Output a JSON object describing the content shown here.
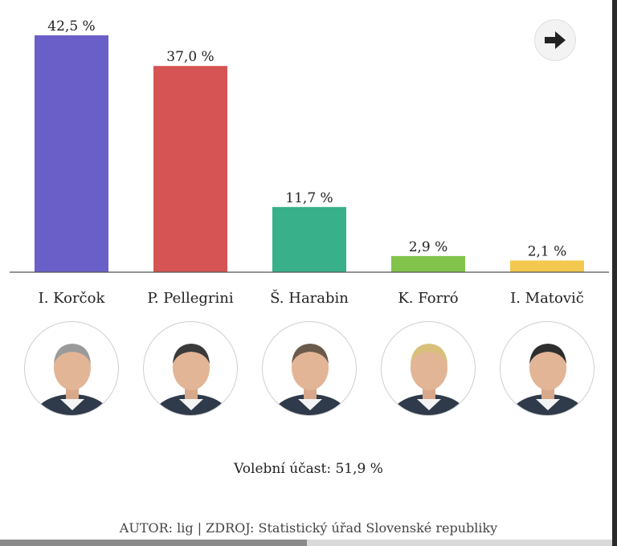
{
  "chart_data": {
    "type": "bar",
    "categories": [
      "I. Korčok",
      "P. Pellegrini",
      "Š. Harabin",
      "K. Forró",
      "I. Matovič"
    ],
    "values": [
      42.5,
      37.0,
      11.7,
      2.9,
      2.1
    ],
    "value_labels": [
      "42,5 %",
      "37,0 %",
      "11,7 %",
      "2,9 %",
      "2,1 %"
    ],
    "colors": [
      "#6a5fc9",
      "#d65454",
      "#38b08a",
      "#82c44b",
      "#f2c84e"
    ],
    "ylim": [
      0,
      42.5
    ],
    "grid": false,
    "legend": "none"
  },
  "footer": {
    "turnout": "Volební účast: 51,9 %",
    "source": "AUTOR: lig | ZDROJ: Statistický úřad Slovenské republiky"
  },
  "icons": {
    "next": "arrow-right-icon",
    "portrait": "person-portrait-icon"
  },
  "scrollbar": {
    "position_fraction": 0.5
  }
}
